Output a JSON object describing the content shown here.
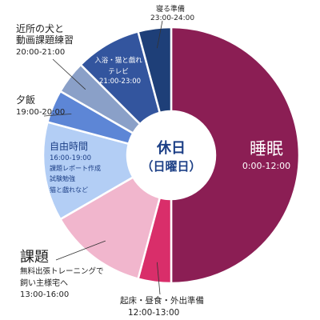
{
  "chart_data": {
    "type": "pie",
    "title": "",
    "center": {
      "line1": "休日",
      "line2": "（日曜日）"
    },
    "slices": [
      {
        "name": "睡眠",
        "time": "0:00-12:00",
        "hours": 12,
        "color": "#8b1e54"
      },
      {
        "name": "起床・昼食・外出準備",
        "time": "12:00-13:00",
        "hours": 1,
        "color": "#d92e6a"
      },
      {
        "name": "課題",
        "detail": "無料出張トレーニングで飼い主様宅へ",
        "time": "13:00-16:00",
        "hours": 3,
        "color": "#f1b6cd"
      },
      {
        "name": "自由時間",
        "time": "16:00-19:00",
        "details": [
          "課題レポート作成",
          "試験勉強",
          "猫と戯れなど"
        ],
        "hours": 3,
        "color": "#b3cef5"
      },
      {
        "name": "夕飯",
        "time": "19:00-20:00",
        "hours": 1,
        "color": "#5d86d6"
      },
      {
        "name": "近所の犬と動画課題練習",
        "time": "20:00-21:00",
        "hours": 1,
        "color": "#8aa0c8"
      },
      {
        "name": "入浴・猫と戯れ",
        "detail": "テレビ",
        "time": "21:00-23:00",
        "hours": 2,
        "color": "#33559e"
      },
      {
        "name": "寝る準備",
        "time": "23:00-24:00",
        "hours": 1,
        "color": "#1e3f78"
      }
    ]
  },
  "labels": {
    "sleep_name": "睡眠",
    "sleep_time": "0:00-12:00",
    "wake_name": "起床・昼食・外出準備",
    "wake_time": "12:00-13:00",
    "task_name": "課題",
    "task_detail1": "無料出張トレーニングで",
    "task_detail2": "飼い主様宅へ",
    "task_time": "13:00-16:00",
    "free_name": "自由時間",
    "free_time": "16:00-19:00",
    "free_d1": "課題レポート作成",
    "free_d2": "試験勉強",
    "free_d3": "猫と戯れなど",
    "dinner_name": "夕飯",
    "dinner_time": "19:00-20:00",
    "dog_line1": "近所の犬と",
    "dog_line2": "動画課題練習",
    "dog_time": "20:00-21:00",
    "bath_line1": "入浴・猫と戯れ",
    "bath_line2": "テレビ",
    "bath_time": "21:00-23:00",
    "bed_name": "寝る準備",
    "bed_time": "23:00-24:00"
  }
}
